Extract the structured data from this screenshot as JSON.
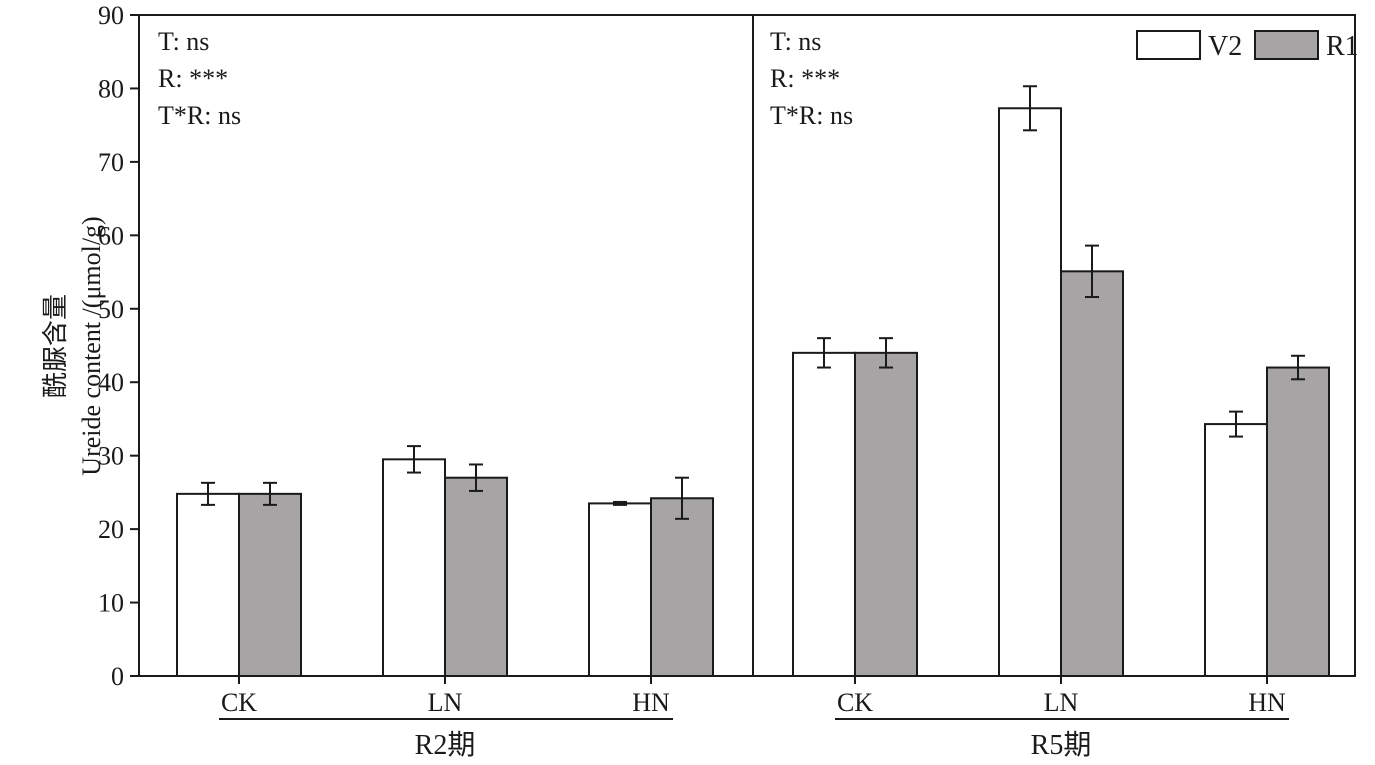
{
  "chart_data": {
    "type": "bar",
    "ylabel": "酰脲含量 Ureide content /(μmol/g)",
    "ylabel_cn": "酰脲含量",
    "ylabel_en": "Ureide content /(μmol/g)",
    "ylim": [
      0,
      90
    ],
    "yticks": [
      "0",
      "10",
      "20",
      "30",
      "40",
      "50",
      "60",
      "70",
      "80",
      "90"
    ],
    "grid": false,
    "legend_position": "top-right",
    "series_colors": {
      "V2": "#ffffff",
      "R1": "#a6a4a5"
    },
    "legend": [
      {
        "name": "V2",
        "color": "#ffffff"
      },
      {
        "name": "R1",
        "color": "#a6a4a5"
      }
    ],
    "panels": [
      {
        "stage": "R2期",
        "categories": [
          "CK",
          "LN",
          "HN"
        ],
        "annotations": [
          "T: ns",
          "R: ***",
          "T*R: ns"
        ],
        "series": [
          {
            "name": "V2",
            "values": [
              24.8,
              29.5,
              23.5
            ],
            "errors": [
              1.5,
              1.8,
              0.2
            ]
          },
          {
            "name": "R1",
            "values": [
              24.8,
              27.0,
              24.2
            ],
            "errors": [
              1.5,
              1.8,
              2.8
            ]
          }
        ]
      },
      {
        "stage": "R5期",
        "categories": [
          "CK",
          "LN",
          "HN"
        ],
        "annotations": [
          "T: ns",
          "R: ***",
          "T*R: ns"
        ],
        "series": [
          {
            "name": "V2",
            "values": [
              44.0,
              77.3,
              34.3
            ],
            "errors": [
              2.0,
              3.0,
              1.7
            ]
          },
          {
            "name": "R1",
            "values": [
              44.0,
              55.1,
              42.0
            ],
            "errors": [
              2.0,
              3.5,
              1.6
            ]
          }
        ]
      }
    ]
  }
}
